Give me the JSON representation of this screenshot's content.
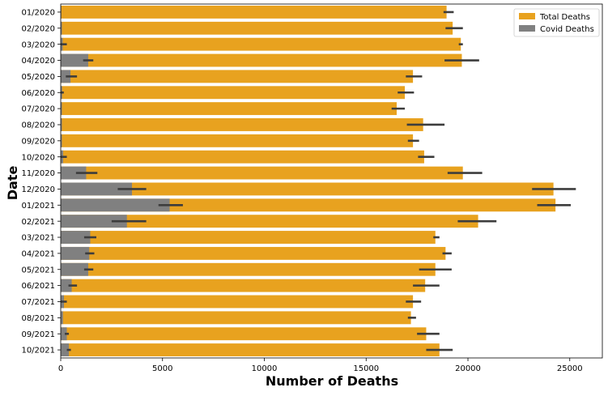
{
  "chart_data": {
    "type": "bar",
    "orientation": "horizontal",
    "xlabel": "Number of Deaths",
    "ylabel": "Date",
    "xlim": [
      0,
      26600
    ],
    "xticks": [
      0,
      5000,
      10000,
      15000,
      20000,
      25000
    ],
    "grid": false,
    "legend_position": "top-right",
    "categories": [
      "01/2020",
      "02/2020",
      "03/2020",
      "04/2020",
      "05/2020",
      "06/2020",
      "07/2020",
      "08/2020",
      "09/2020",
      "10/2020",
      "11/2020",
      "12/2020",
      "01/2021",
      "02/2021",
      "03/2021",
      "04/2021",
      "05/2021",
      "06/2021",
      "07/2021",
      "08/2021",
      "09/2021",
      "10/2021"
    ],
    "series": [
      {
        "name": "Total Deaths",
        "color": "#e8a21f",
        "values": [
          18950,
          19250,
          19650,
          19700,
          17300,
          16900,
          16500,
          17800,
          17300,
          17850,
          19750,
          24200,
          24300,
          20500,
          18400,
          18900,
          18400,
          17900,
          17300,
          17200,
          17950,
          18600
        ],
        "err_low": [
          18800,
          18900,
          19550,
          18850,
          16950,
          16550,
          16250,
          17000,
          17050,
          17550,
          19000,
          23150,
          23400,
          19500,
          18300,
          18750,
          17600,
          17300,
          16950,
          17050,
          17500,
          17950
        ],
        "err_high": [
          19300,
          19750,
          19750,
          20550,
          17750,
          17350,
          16900,
          18850,
          17600,
          18350,
          20700,
          25300,
          25050,
          21400,
          18600,
          19200,
          19200,
          18600,
          17700,
          17450,
          18600,
          19250
        ]
      },
      {
        "name": "Covid Deaths",
        "color": "#808080",
        "values": [
          30,
          60,
          100,
          1350,
          480,
          70,
          60,
          60,
          60,
          120,
          1250,
          3500,
          5350,
          3250,
          1450,
          1400,
          1350,
          540,
          160,
          110,
          300,
          400
        ],
        "err_low": [
          0,
          0,
          0,
          1100,
          250,
          0,
          0,
          0,
          0,
          0,
          750,
          2800,
          4800,
          2500,
          1150,
          1200,
          1150,
          380,
          0,
          0,
          200,
          300
        ],
        "err_high": [
          0,
          0,
          300,
          1600,
          800,
          150,
          0,
          0,
          0,
          300,
          1800,
          4200,
          6000,
          4200,
          1750,
          1650,
          1600,
          800,
          300,
          0,
          400,
          500
        ]
      }
    ]
  }
}
